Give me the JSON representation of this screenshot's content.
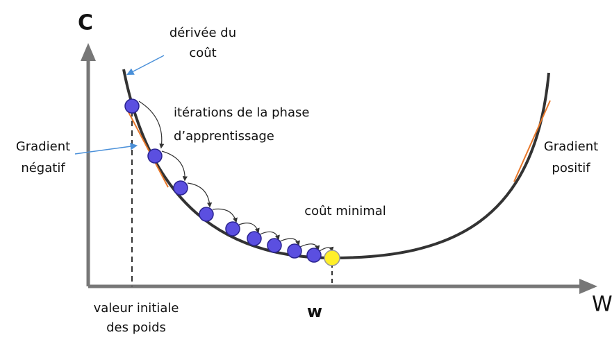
{
  "axes": {
    "y_label": "C",
    "x_label": "W",
    "minimum_label": "w",
    "initial_label": [
      "valeur initiale",
      "des poids"
    ]
  },
  "annotations": {
    "derivative": [
      "dérivée du",
      "coût"
    ],
    "iterations": [
      "itérations de la phase",
      "d’apprentissage"
    ],
    "negative_gradient": [
      "Gradient",
      "négatif"
    ],
    "positive_gradient": [
      "Gradient",
      "positif"
    ],
    "minimum": "coût minimal"
  }
}
